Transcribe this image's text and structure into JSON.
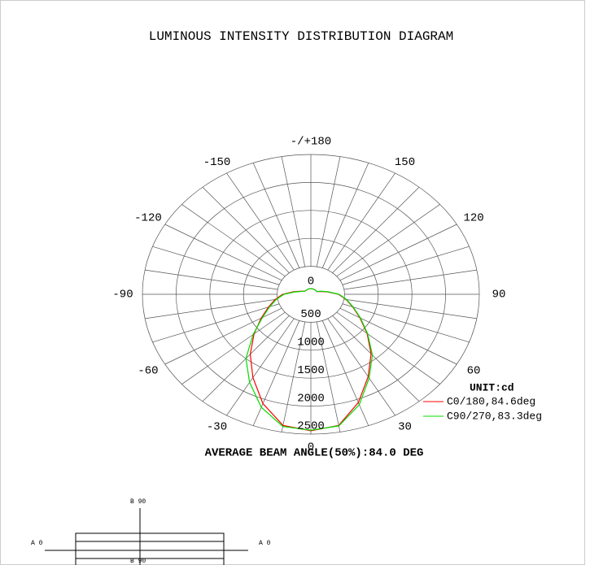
{
  "chart_data": {
    "type": "polar",
    "title": "LUMINOUS INTENSITY DISTRIBUTION DIAGRAM",
    "x": [
      -180,
      -170,
      -160,
      -150,
      -140,
      -130,
      -120,
      -110,
      -100,
      -90,
      -80,
      -70,
      -60,
      -50,
      -40,
      -30,
      -20,
      -10,
      0,
      10,
      20,
      30,
      40,
      50,
      60,
      70,
      80,
      90,
      100,
      110,
      120,
      130,
      140,
      150,
      160,
      170,
      180
    ],
    "series": [
      {
        "name": "C0/180,84.6deg",
        "color": "#ff0000",
        "values": [
          100,
          100,
          100,
          100,
          100,
          100,
          110,
          160,
          260,
          420,
          540,
          670,
          850,
          1100,
          1400,
          1720,
          2080,
          2380,
          2440,
          2380,
          2060,
          1700,
          1390,
          1090,
          840,
          660,
          530,
          410,
          250,
          150,
          100,
          100,
          100,
          100,
          100,
          100,
          100
        ]
      },
      {
        "name": "C90/270,83.3deg",
        "color": "#00dd00",
        "values": [
          100,
          100,
          100,
          100,
          100,
          100,
          110,
          150,
          240,
          400,
          520,
          650,
          830,
          1120,
          1500,
          1820,
          2150,
          2400,
          2430,
          2390,
          2100,
          1730,
          1420,
          1100,
          850,
          670,
          540,
          420,
          260,
          160,
          100,
          100,
          100,
          100,
          100,
          100,
          100
        ]
      }
    ],
    "rlim": [
      0,
      2500
    ],
    "rticks": [
      0,
      500,
      1000,
      1500,
      2000,
      2500
    ],
    "angle_ticks": [
      0,
      30,
      60,
      90,
      120,
      150,
      {
        "value": 180,
        "label": "-/+180"
      },
      -150,
      -120,
      -90,
      -60,
      -30
    ],
    "angle_gridlines": [
      -170,
      -160,
      -150,
      -140,
      -130,
      -120,
      -110,
      -100,
      -90,
      -80,
      -70,
      -60,
      -50,
      -40,
      -30,
      -20,
      -10,
      0,
      10,
      20,
      30,
      40,
      50,
      60,
      70,
      80,
      90,
      100,
      110,
      120,
      130,
      140,
      150,
      160,
      170,
      180
    ],
    "legend_title": "UNIT:cd",
    "annotation": "AVERAGE BEAM ANGLE(50%):84.0 DEG",
    "diagram": {
      "top": "B 90",
      "bottom": "B 90",
      "left": "A 0",
      "right": "A 0"
    }
  }
}
